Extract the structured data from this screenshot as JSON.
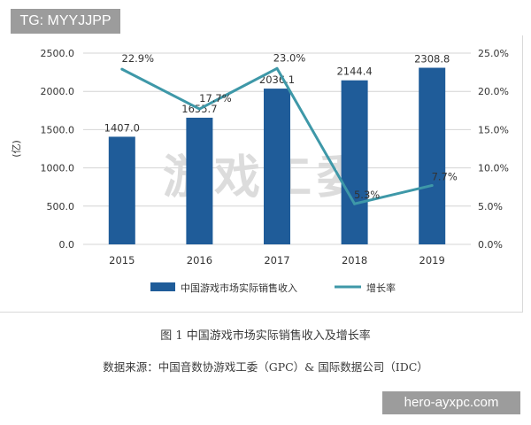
{
  "top_tag": "TG: MYYJJPP",
  "bottom_tag": "hero-ayxpc.com",
  "caption": "图 1  中国游戏市场实际销售收入及增长率",
  "source": "数据来源：中国音数协游戏工委（GPC）& 国际数据公司（IDC）",
  "chart_watermark": "游戏工委",
  "colors": {
    "bar": "#1f5c99",
    "line": "#3e98a8",
    "grid": "#d4d4d4",
    "watermark": "#dcdcdc"
  },
  "chart_data": {
    "type": "bar",
    "categories": [
      "2015",
      "2016",
      "2017",
      "2018",
      "2019"
    ],
    "series": [
      {
        "name": "中国游戏市场实际销售收入",
        "type": "bar",
        "axis": "left",
        "values": [
          1407.0,
          1655.7,
          2036.1,
          2144.4,
          2308.8
        ],
        "labels": [
          "1407.0",
          "1655.7",
          "2036.1",
          "2144.4",
          "2308.8"
        ]
      },
      {
        "name": "增长率",
        "type": "line",
        "axis": "right",
        "values": [
          22.9,
          17.7,
          23.0,
          5.3,
          7.7
        ],
        "labels": [
          "22.9%",
          "17.7%",
          "23.0%",
          "5.3%",
          "7.7%"
        ]
      }
    ],
    "ylabel": "(亿)",
    "ylim": [
      0,
      2500
    ],
    "yticks": [
      "0.0",
      "500.0",
      "1000.0",
      "1500.0",
      "2000.0",
      "2500.0"
    ],
    "y2lim": [
      0,
      25
    ],
    "y2ticks": [
      "0.0%",
      "5.0%",
      "10.0%",
      "15.0%",
      "20.0%",
      "25.0%"
    ],
    "grid": true,
    "legend": "bottom-center"
  }
}
